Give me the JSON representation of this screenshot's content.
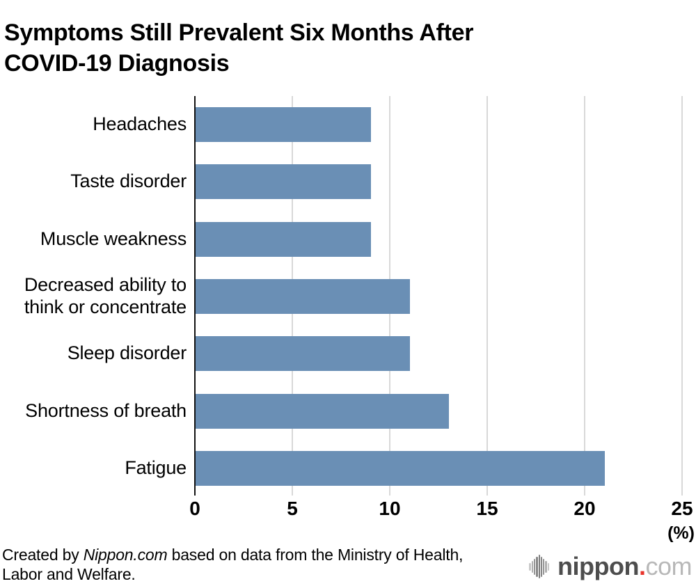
{
  "title": {
    "line1": "Symptoms Still Prevalent Six Months After",
    "line2": "COVID-19 Diagnosis"
  },
  "chart_data": {
    "type": "bar",
    "orientation": "horizontal",
    "categories": [
      "Headaches",
      "Taste disorder",
      "Muscle weakness",
      "Decreased ability to think or concentrate",
      "Sleep disorder",
      "Shortness of breath",
      "Fatigue"
    ],
    "values": [
      9,
      9,
      9,
      11,
      11,
      13,
      21
    ],
    "title": "Symptoms Still Prevalent Six Months After COVID-19 Diagnosis",
    "xlabel": "(%)",
    "ylabel": "",
    "xlim": [
      0,
      25
    ],
    "xticks": [
      0,
      5,
      10,
      15,
      20,
      25
    ],
    "grid": true,
    "legend": false,
    "bar_color": "#6a8fb5",
    "gridline_color": "#d8d8d8",
    "axis_color": "#111111"
  },
  "unit_label": "(%)",
  "footer": {
    "credit_prefix": "Created by ",
    "credit_site": "Nippon.com",
    "credit_line1_suffix": " based on data from the Ministry of Health,",
    "credit_line2": "Labor and Welfare."
  },
  "logo": {
    "icon": "soundwave-bars-icon",
    "name": "nippon",
    "dot": ".",
    "tld": "com",
    "name_color": "#4d4d4d",
    "dot_color": "#e8332a",
    "tld_color": "#b8b8b8",
    "icon_colors": [
      "#c9c9c9",
      "#b0b0b0",
      "#969696",
      "#878787",
      "#7d7d7d",
      "#878787",
      "#969696",
      "#b0b0b0",
      "#c9c9c9"
    ]
  }
}
